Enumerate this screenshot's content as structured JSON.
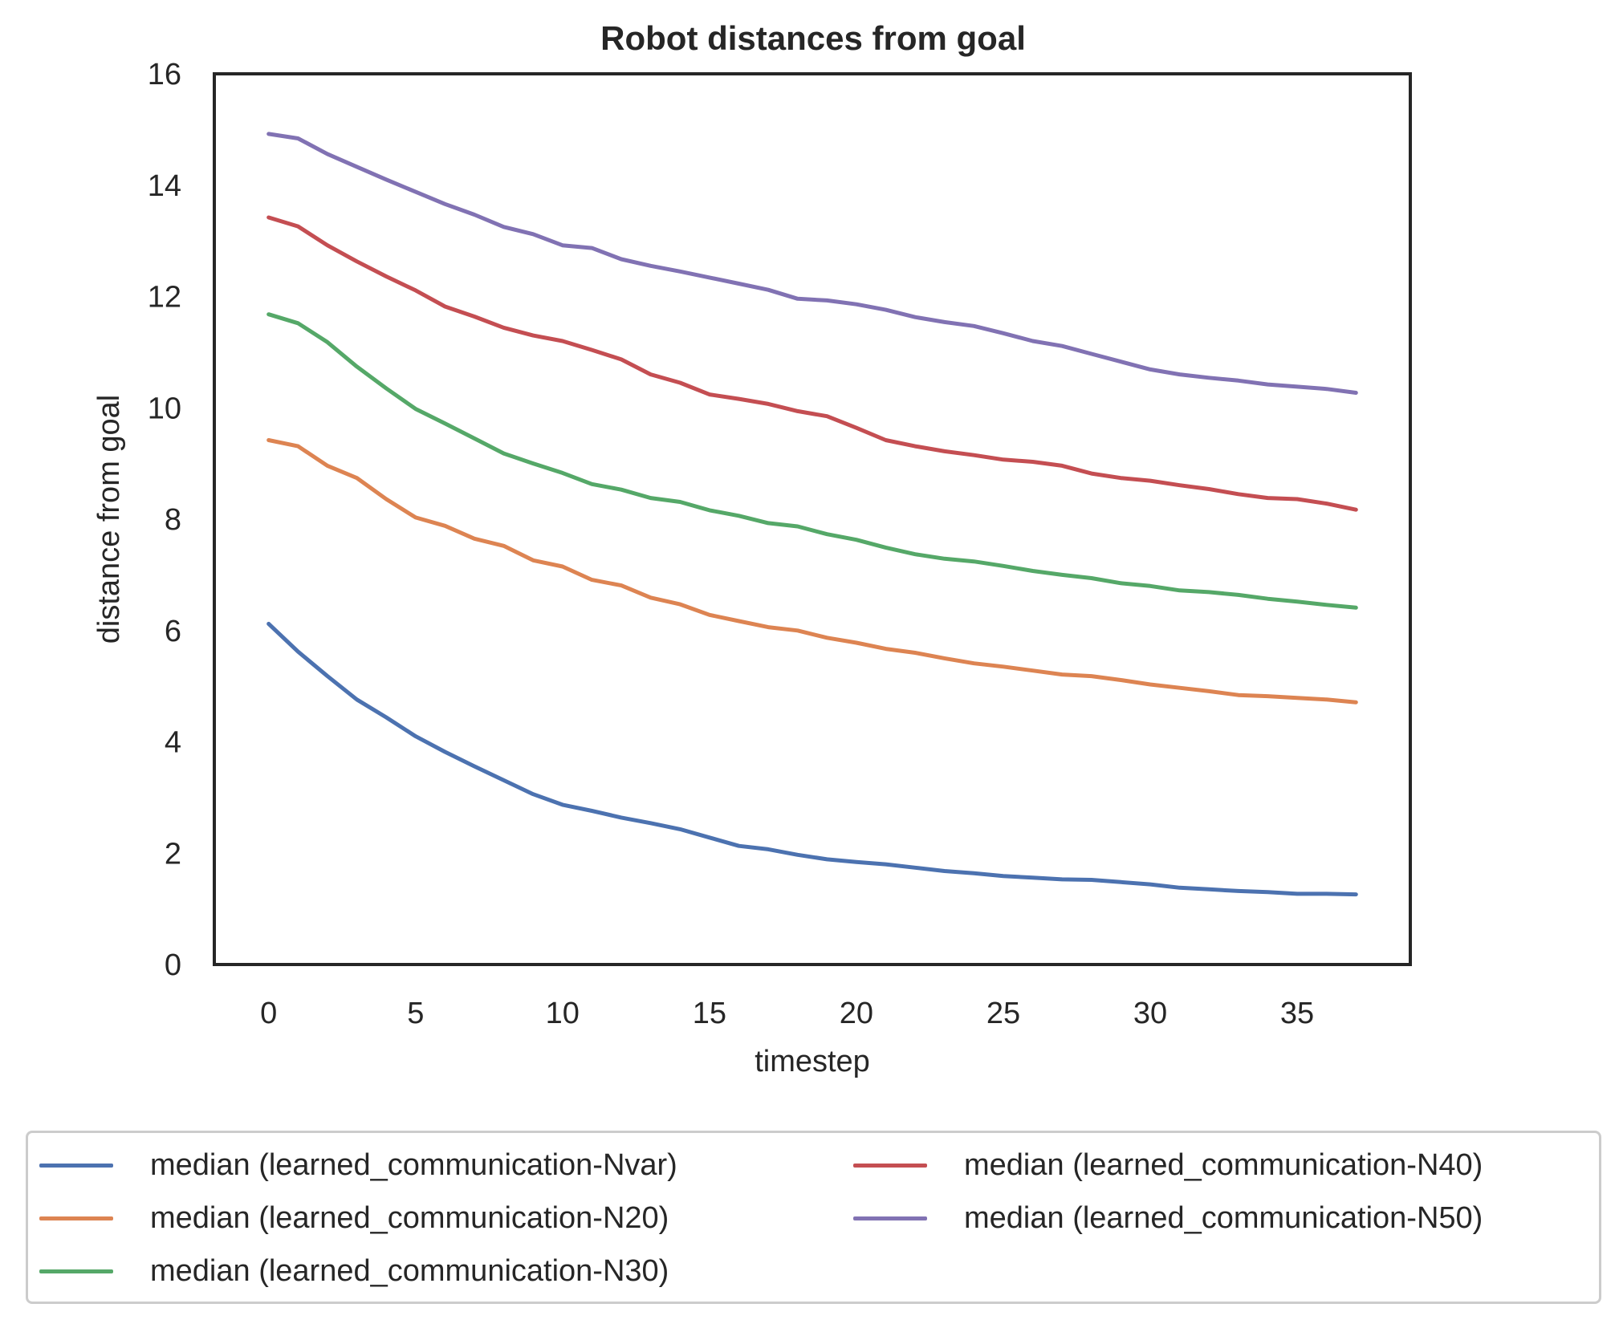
{
  "chart_data": {
    "type": "line",
    "title": "Robot distances from goal",
    "xlabel": "timestep",
    "ylabel": "distance from goal",
    "xlim": [
      -1.85,
      38.85
    ],
    "ylim": [
      0,
      16
    ],
    "xticks": [
      0,
      5,
      10,
      15,
      20,
      25,
      30,
      35
    ],
    "yticks": [
      0,
      2,
      4,
      6,
      8,
      10,
      12,
      14,
      16
    ],
    "grid": false,
    "legend_position": "bottom-center",
    "legend_columns": 2,
    "x": [
      0,
      1,
      2,
      3,
      4,
      5,
      6,
      7,
      8,
      9,
      10,
      11,
      12,
      13,
      14,
      15,
      16,
      17,
      18,
      19,
      20,
      21,
      22,
      23,
      24,
      25,
      26,
      27,
      28,
      29,
      30,
      31,
      32,
      33,
      34,
      35,
      36,
      37
    ],
    "series": [
      {
        "name": "median (learned_communication-Nvar)",
        "color": "#4c72b0",
        "values": [
          6.12,
          5.62,
          5.18,
          4.76,
          4.44,
          4.1,
          3.82,
          3.56,
          3.31,
          3.06,
          2.87,
          2.76,
          2.64,
          2.54,
          2.43,
          2.28,
          2.13,
          2.07,
          1.97,
          1.89,
          1.84,
          1.8,
          1.74,
          1.68,
          1.64,
          1.59,
          1.56,
          1.53,
          1.52,
          1.48,
          1.44,
          1.38,
          1.35,
          1.32,
          1.3,
          1.27,
          1.27,
          1.26
        ]
      },
      {
        "name": "median (learned_communication-N20)",
        "color": "#dd8452",
        "values": [
          9.42,
          9.31,
          8.96,
          8.74,
          8.36,
          8.03,
          7.88,
          7.65,
          7.52,
          7.26,
          7.15,
          6.91,
          6.81,
          6.59,
          6.47,
          6.28,
          6.17,
          6.06,
          6.0,
          5.87,
          5.78,
          5.67,
          5.6,
          5.5,
          5.41,
          5.35,
          5.28,
          5.21,
          5.18,
          5.11,
          5.03,
          4.97,
          4.91,
          4.84,
          4.82,
          4.79,
          4.76,
          4.71
        ]
      },
      {
        "name": "median (learned_communication-N30)",
        "color": "#55a868",
        "values": [
          11.68,
          11.52,
          11.18,
          10.74,
          10.35,
          9.98,
          9.72,
          9.45,
          9.18,
          9.0,
          8.83,
          8.63,
          8.53,
          8.38,
          8.31,
          8.16,
          8.06,
          7.93,
          7.87,
          7.73,
          7.63,
          7.49,
          7.37,
          7.29,
          7.24,
          7.16,
          7.07,
          7.0,
          6.94,
          6.85,
          6.8,
          6.72,
          6.69,
          6.64,
          6.57,
          6.52,
          6.46,
          6.41
        ]
      },
      {
        "name": "median (learned_communication-N40)",
        "color": "#c44e52",
        "values": [
          13.42,
          13.26,
          12.92,
          12.63,
          12.36,
          12.11,
          11.82,
          11.64,
          11.44,
          11.3,
          11.2,
          11.04,
          10.87,
          10.6,
          10.45,
          10.24,
          10.16,
          10.07,
          9.94,
          9.85,
          9.64,
          9.42,
          9.31,
          9.22,
          9.15,
          9.07,
          9.03,
          8.96,
          8.82,
          8.74,
          8.69,
          8.61,
          8.54,
          8.45,
          8.38,
          8.36,
          8.28,
          8.17
        ]
      },
      {
        "name": "median (learned_communication-N50)",
        "color": "#8172b3",
        "values": [
          14.92,
          14.84,
          14.56,
          14.33,
          14.1,
          13.88,
          13.66,
          13.47,
          13.25,
          13.12,
          12.92,
          12.87,
          12.67,
          12.55,
          12.45,
          12.34,
          12.23,
          12.12,
          11.96,
          11.93,
          11.86,
          11.76,
          11.63,
          11.54,
          11.47,
          11.34,
          11.2,
          11.11,
          10.97,
          10.83,
          10.69,
          10.6,
          10.54,
          10.49,
          10.42,
          10.38,
          10.34,
          10.27
        ]
      }
    ]
  }
}
